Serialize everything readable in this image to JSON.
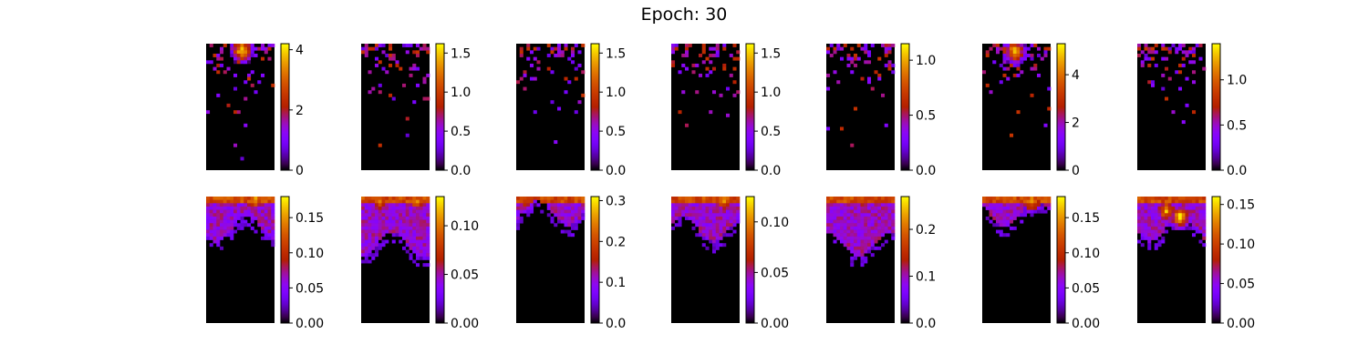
{
  "title": "Epoch: 30",
  "colormap": "gnuplot",
  "colors": {
    "low": "#000000",
    "mid_low": "#5a00ff",
    "mid": "#b8006a",
    "mid_high": "#e05000",
    "high": "#ffff00"
  },
  "chart_data": [
    {
      "type": "heatmap",
      "row": 1,
      "col": 1,
      "colorbar": {
        "vmin": 0,
        "vmax": 4.2,
        "ticks": [
          "0",
          "2",
          "4"
        ]
      },
      "pattern": "sparse",
      "hotspots": [
        {
          "x": 0.5,
          "y": 0.04,
          "v": 0.95
        }
      ]
    },
    {
      "type": "heatmap",
      "row": 1,
      "col": 2,
      "colorbar": {
        "vmin": 0,
        "vmax": 1.62,
        "ticks": [
          "0.0",
          "0.5",
          "1.0",
          "1.5"
        ]
      },
      "pattern": "sparse",
      "hotspots": []
    },
    {
      "type": "heatmap",
      "row": 1,
      "col": 3,
      "colorbar": {
        "vmin": 0,
        "vmax": 1.62,
        "ticks": [
          "0.0",
          "0.5",
          "1.0",
          "1.5"
        ]
      },
      "pattern": "sparse",
      "hotspots": []
    },
    {
      "type": "heatmap",
      "row": 1,
      "col": 4,
      "colorbar": {
        "vmin": 0,
        "vmax": 1.62,
        "ticks": [
          "0.0",
          "0.5",
          "1.0",
          "1.5"
        ]
      },
      "pattern": "sparse",
      "hotspots": []
    },
    {
      "type": "heatmap",
      "row": 1,
      "col": 5,
      "colorbar": {
        "vmin": 0,
        "vmax": 1.15,
        "ticks": [
          "0.0",
          "0.5",
          "1.0"
        ]
      },
      "pattern": "sparse",
      "hotspots": []
    },
    {
      "type": "heatmap",
      "row": 1,
      "col": 6,
      "colorbar": {
        "vmin": 0,
        "vmax": 5.3,
        "ticks": [
          "0",
          "2",
          "4"
        ]
      },
      "pattern": "sparse",
      "hotspots": [
        {
          "x": 0.45,
          "y": 0.05,
          "v": 0.9
        }
      ]
    },
    {
      "type": "heatmap",
      "row": 1,
      "col": 7,
      "colorbar": {
        "vmin": 0,
        "vmax": 1.4,
        "ticks": [
          "0.0",
          "0.5",
          "1.0"
        ]
      },
      "pattern": "sparse",
      "hotspots": []
    },
    {
      "type": "heatmap",
      "row": 2,
      "col": 1,
      "colorbar": {
        "vmin": 0,
        "vmax": 0.18,
        "ticks": [
          "0.00",
          "0.05",
          "0.10",
          "0.15"
        ]
      },
      "pattern": "dense",
      "hotspots": [
        {
          "x": 0.7,
          "y": 0.01,
          "v": 0.85
        }
      ]
    },
    {
      "type": "heatmap",
      "row": 2,
      "col": 2,
      "colorbar": {
        "vmin": 0,
        "vmax": 0.13,
        "ticks": [
          "0.00",
          "0.05",
          "0.10"
        ]
      },
      "pattern": "dense",
      "hotspots": [
        {
          "x": 0.25,
          "y": 0.03,
          "v": 0.7
        },
        {
          "x": 0.8,
          "y": 0.03,
          "v": 0.7
        }
      ]
    },
    {
      "type": "heatmap",
      "row": 2,
      "col": 3,
      "colorbar": {
        "vmin": 0,
        "vmax": 0.31,
        "ticks": [
          "0.0",
          "0.1",
          "0.2",
          "0.3"
        ]
      },
      "pattern": "dense",
      "hotspots": [
        {
          "x": 0.1,
          "y": 0.01,
          "v": 0.6
        }
      ]
    },
    {
      "type": "heatmap",
      "row": 2,
      "col": 4,
      "colorbar": {
        "vmin": 0,
        "vmax": 0.125,
        "ticks": [
          "0.00",
          "0.05",
          "0.10"
        ]
      },
      "pattern": "dense",
      "hotspots": [
        {
          "x": 0.75,
          "y": 0.02,
          "v": 0.75
        }
      ]
    },
    {
      "type": "heatmap",
      "row": 2,
      "col": 5,
      "colorbar": {
        "vmin": 0,
        "vmax": 0.27,
        "ticks": [
          "0.0",
          "0.1",
          "0.2"
        ]
      },
      "pattern": "dense",
      "hotspots": [
        {
          "x": 0.5,
          "y": 0.01,
          "v": 0.5
        }
      ]
    },
    {
      "type": "heatmap",
      "row": 2,
      "col": 6,
      "colorbar": {
        "vmin": 0,
        "vmax": 0.18,
        "ticks": [
          "0.00",
          "0.05",
          "0.10",
          "0.15"
        ]
      },
      "pattern": "dense",
      "hotspots": [
        {
          "x": 0.7,
          "y": 0.02,
          "v": 0.8
        }
      ]
    },
    {
      "type": "heatmap",
      "row": 2,
      "col": 7,
      "colorbar": {
        "vmin": 0,
        "vmax": 0.16,
        "ticks": [
          "0.00",
          "0.05",
          "0.10",
          "0.15"
        ]
      },
      "pattern": "dense",
      "hotspots": [
        {
          "x": 0.6,
          "y": 0.15,
          "v": 0.95
        },
        {
          "x": 0.4,
          "y": 0.1,
          "v": 0.8
        }
      ]
    }
  ]
}
